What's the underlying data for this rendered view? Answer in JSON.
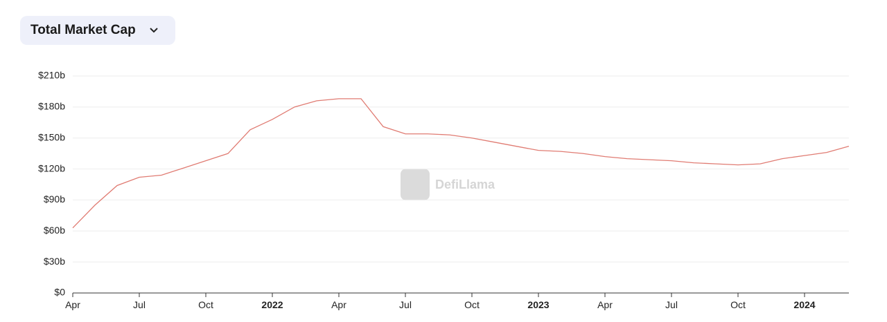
{
  "selector": {
    "label": "Total Market Cap"
  },
  "chart_data": {
    "type": "line",
    "watermark": "DefiLlama",
    "x": [
      "2021-04",
      "2021-05",
      "2021-06",
      "2021-07",
      "2021-08",
      "2021-09",
      "2021-10",
      "2021-11",
      "2021-12",
      "2022-01",
      "2022-02",
      "2022-03",
      "2022-04",
      "2022-05",
      "2022-06",
      "2022-07",
      "2022-08",
      "2022-09",
      "2022-10",
      "2022-11",
      "2022-12",
      "2023-01",
      "2023-02",
      "2023-03",
      "2023-04",
      "2023-05",
      "2023-06",
      "2023-07",
      "2023-08",
      "2023-09",
      "2023-10",
      "2023-11",
      "2023-12",
      "2024-01",
      "2024-02",
      "2024-03"
    ],
    "series": [
      {
        "color": "#e07b72",
        "values": [
          63,
          85,
          104,
          112,
          114,
          121,
          128,
          135,
          158,
          168,
          180,
          186,
          188,
          188,
          161,
          154,
          154,
          153,
          150,
          146,
          142,
          138,
          137,
          135,
          132,
          130,
          129,
          128,
          126,
          125,
          124,
          125,
          130,
          133,
          136,
          142
        ]
      }
    ],
    "xlim": [
      "2021-04",
      "2024-03"
    ],
    "xticks": [
      {
        "value": "2021-04",
        "label": "Apr"
      },
      {
        "value": "2021-07",
        "label": "Jul"
      },
      {
        "value": "2021-10",
        "label": "Oct"
      },
      {
        "value": "2022-01",
        "label": "2022"
      },
      {
        "value": "2022-04",
        "label": "Apr"
      },
      {
        "value": "2022-07",
        "label": "Jul"
      },
      {
        "value": "2022-10",
        "label": "Oct"
      },
      {
        "value": "2023-01",
        "label": "2023"
      },
      {
        "value": "2023-04",
        "label": "Apr"
      },
      {
        "value": "2023-07",
        "label": "Jul"
      },
      {
        "value": "2023-10",
        "label": "Oct"
      },
      {
        "value": "2024-01",
        "label": "2024"
      }
    ],
    "ylim": [
      0,
      210
    ],
    "yticks": [
      {
        "value": 0,
        "label": "$0"
      },
      {
        "value": 30,
        "label": "$30b"
      },
      {
        "value": 60,
        "label": "$60b"
      },
      {
        "value": 90,
        "label": "$90b"
      },
      {
        "value": 120,
        "label": "$120b"
      },
      {
        "value": 150,
        "label": "$150b"
      },
      {
        "value": 180,
        "label": "$180b"
      },
      {
        "value": 210,
        "label": "$210b"
      }
    ],
    "grid": true
  }
}
